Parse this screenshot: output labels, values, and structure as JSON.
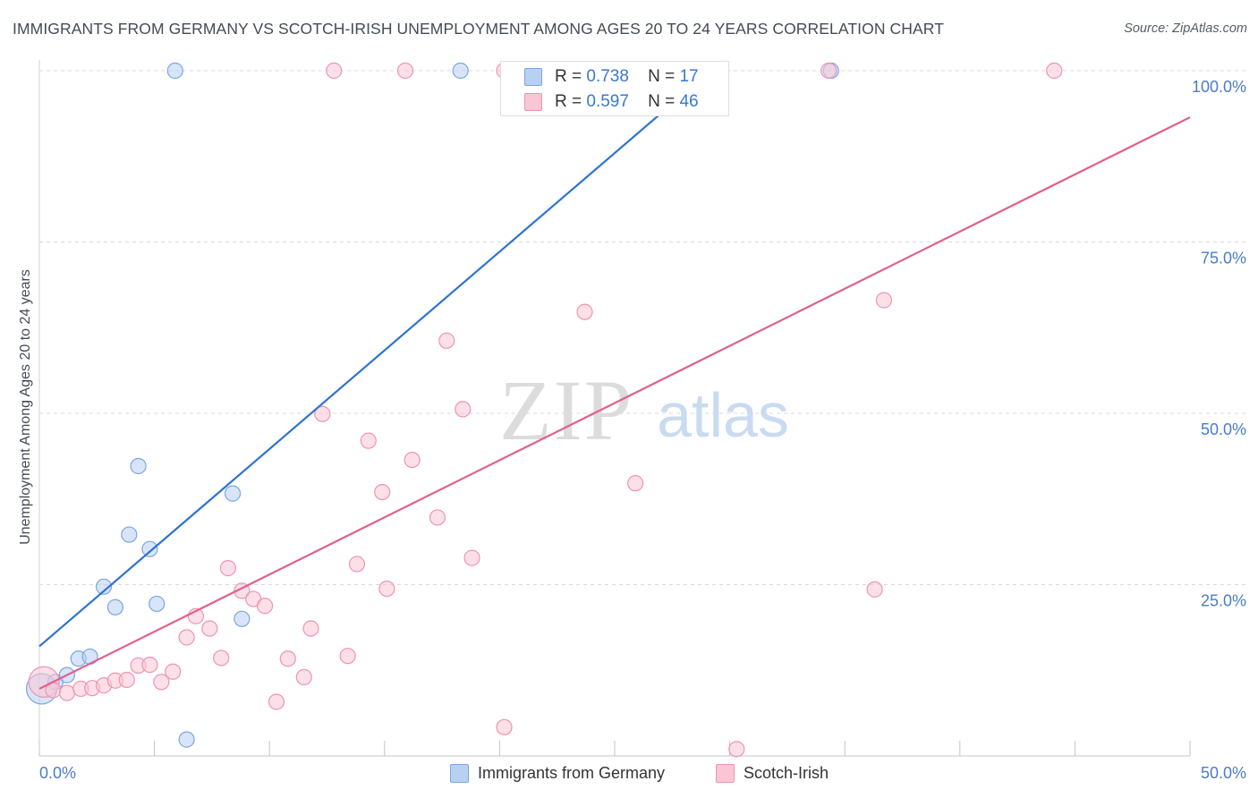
{
  "title": "IMMIGRANTS FROM GERMANY VS SCOTCH-IRISH UNEMPLOYMENT AMONG AGES 20 TO 24 YEARS CORRELATION CHART",
  "source": "Source: ZipAtlas.com",
  "watermark": {
    "zip": "ZIP",
    "atlas": "atlas"
  },
  "colors": {
    "blue_fill": "#b8d0f2",
    "blue_stroke": "#7aa6e0",
    "blue_line": "#2f72d0",
    "pink_fill": "#f9c6d6",
    "pink_stroke": "#ee94b2",
    "pink_line": "#e0608e",
    "tick_text": "#4a7cc8",
    "grid": "#d8d8d8"
  },
  "legend": {
    "rows": [
      {
        "r_label": "R =",
        "r_value": "0.738",
        "n_label": "N =",
        "n_value": "17"
      },
      {
        "r_label": "R =",
        "r_value": "0.597",
        "n_label": "N =",
        "n_value": "46"
      }
    ]
  },
  "bottom_legend": [
    {
      "label": "Immigrants from Germany"
    },
    {
      "label": "Scotch-Irish"
    }
  ],
  "chart_data": {
    "type": "scatter",
    "title": "IMMIGRANTS FROM GERMANY VS SCOTCH-IRISH UNEMPLOYMENT AMONG AGES 20 TO 24 YEARS CORRELATION CHART",
    "xlabel": "",
    "ylabel": "Unemployment Among Ages 20 to 24 years",
    "xlim": [
      0,
      50
    ],
    "ylim": [
      0,
      100
    ],
    "x_tick_labels": [
      "0.0%",
      "50.0%"
    ],
    "y_ticks": [
      25,
      50,
      75,
      100
    ],
    "y_tick_labels": [
      "25.0%",
      "50.0%",
      "75.0%",
      "100.0%"
    ],
    "grid": true,
    "series": [
      {
        "name": "Immigrants from Germany",
        "r": 0.738,
        "n": 17,
        "trend": {
          "x": [
            0,
            29
          ],
          "y": [
            16.0,
            99.5
          ]
        },
        "points": [
          {
            "x": 0.1,
            "y": 9.8,
            "size": "large"
          },
          {
            "x": 0.7,
            "y": 10.8
          },
          {
            "x": 1.2,
            "y": 11.8
          },
          {
            "x": 1.7,
            "y": 14.2
          },
          {
            "x": 2.2,
            "y": 14.5
          },
          {
            "x": 2.8,
            "y": 24.7
          },
          {
            "x": 3.3,
            "y": 21.7
          },
          {
            "x": 3.9,
            "y": 32.3
          },
          {
            "x": 4.3,
            "y": 42.3
          },
          {
            "x": 4.8,
            "y": 30.2
          },
          {
            "x": 5.1,
            "y": 22.2
          },
          {
            "x": 5.9,
            "y": 100
          },
          {
            "x": 6.4,
            "y": 2.4
          },
          {
            "x": 8.4,
            "y": 38.3
          },
          {
            "x": 8.8,
            "y": 20.0
          },
          {
            "x": 18.3,
            "y": 100
          },
          {
            "x": 34.4,
            "y": 100
          }
        ]
      },
      {
        "name": "Scotch-Irish",
        "r": 0.597,
        "n": 46,
        "trend": {
          "x": [
            0,
            50
          ],
          "y": [
            9.8,
            93.2
          ]
        },
        "points": [
          {
            "x": 0.2,
            "y": 10.8,
            "size": "large"
          },
          {
            "x": 0.6,
            "y": 9.6
          },
          {
            "x": 1.2,
            "y": 9.2
          },
          {
            "x": 1.8,
            "y": 9.8
          },
          {
            "x": 2.3,
            "y": 9.9
          },
          {
            "x": 2.8,
            "y": 10.3
          },
          {
            "x": 3.3,
            "y": 11.0
          },
          {
            "x": 3.8,
            "y": 11.1
          },
          {
            "x": 4.3,
            "y": 13.2
          },
          {
            "x": 4.8,
            "y": 13.3
          },
          {
            "x": 5.3,
            "y": 10.8
          },
          {
            "x": 5.8,
            "y": 12.3
          },
          {
            "x": 6.4,
            "y": 17.3
          },
          {
            "x": 6.8,
            "y": 20.4
          },
          {
            "x": 7.4,
            "y": 18.6
          },
          {
            "x": 7.9,
            "y": 14.3
          },
          {
            "x": 8.2,
            "y": 27.4
          },
          {
            "x": 8.8,
            "y": 24.1
          },
          {
            "x": 9.3,
            "y": 22.9
          },
          {
            "x": 9.8,
            "y": 21.9
          },
          {
            "x": 10.3,
            "y": 7.9
          },
          {
            "x": 10.8,
            "y": 14.2
          },
          {
            "x": 11.5,
            "y": 11.5
          },
          {
            "x": 11.8,
            "y": 18.6
          },
          {
            "x": 12.3,
            "y": 49.9
          },
          {
            "x": 12.8,
            "y": 100
          },
          {
            "x": 13.4,
            "y": 14.6
          },
          {
            "x": 13.8,
            "y": 28.0
          },
          {
            "x": 14.3,
            "y": 46.0
          },
          {
            "x": 14.9,
            "y": 38.5
          },
          {
            "x": 15.1,
            "y": 24.4
          },
          {
            "x": 15.9,
            "y": 100
          },
          {
            "x": 16.2,
            "y": 43.2
          },
          {
            "x": 17.3,
            "y": 34.8
          },
          {
            "x": 17.7,
            "y": 60.6
          },
          {
            "x": 18.4,
            "y": 50.6
          },
          {
            "x": 18.8,
            "y": 28.9
          },
          {
            "x": 20.2,
            "y": 100
          },
          {
            "x": 20.2,
            "y": 4.2
          },
          {
            "x": 23.7,
            "y": 64.8
          },
          {
            "x": 25.9,
            "y": 39.8
          },
          {
            "x": 30.3,
            "y": 1.0
          },
          {
            "x": 34.3,
            "y": 100
          },
          {
            "x": 36.3,
            "y": 24.3
          },
          {
            "x": 36.7,
            "y": 66.5
          },
          {
            "x": 44.1,
            "y": 100
          }
        ]
      }
    ]
  }
}
